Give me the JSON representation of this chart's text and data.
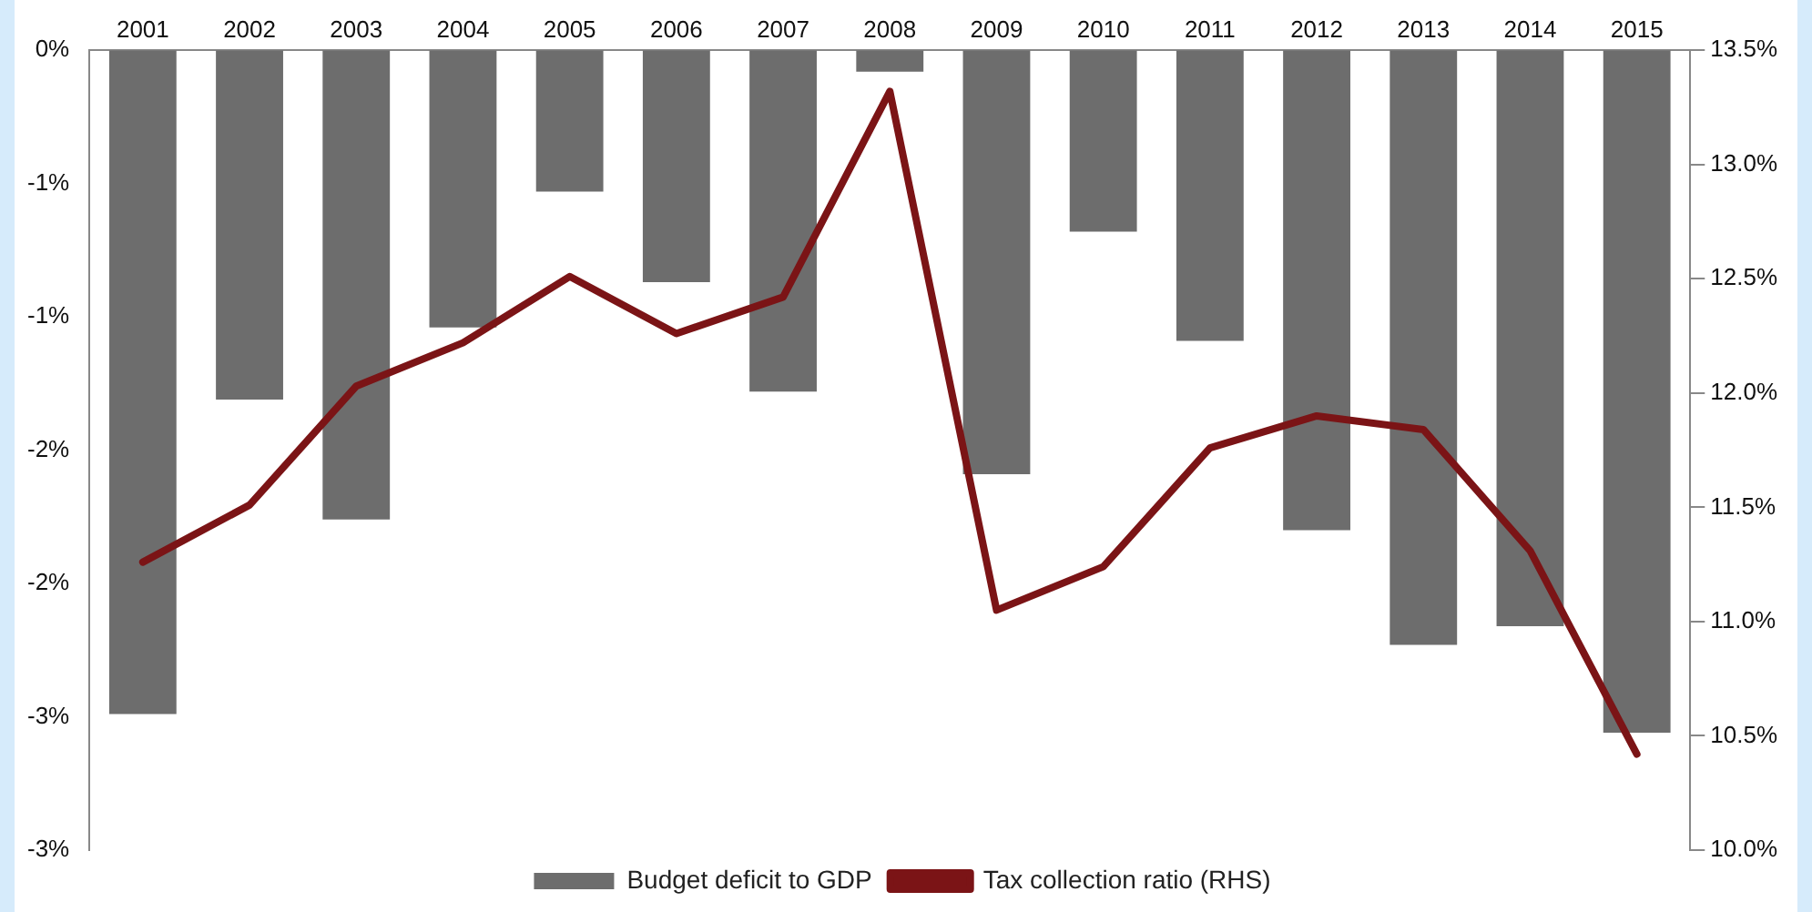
{
  "chart_data": {
    "type": "bar",
    "categories": [
      "2001",
      "2002",
      "2003",
      "2004",
      "2005",
      "2006",
      "2007",
      "2008",
      "2009",
      "2010",
      "2011",
      "2012",
      "2013",
      "2014",
      "2015"
    ],
    "series": [
      {
        "name": "Budget deficit to GDP",
        "color": "#6d6d6d",
        "values": [
          -2.49,
          -1.31,
          -1.76,
          -1.04,
          -0.53,
          -0.87,
          -1.28,
          -0.08,
          -1.59,
          -0.68,
          -1.09,
          -1.8,
          -2.23,
          -2.16,
          -2.56
        ]
      },
      {
        "name": "Tax collection ratio (RHS)",
        "type": "line",
        "axis": "y2",
        "color": "#7b1416",
        "values": [
          11.26,
          11.51,
          12.03,
          12.22,
          12.51,
          12.26,
          12.42,
          13.32,
          11.05,
          11.24,
          11.76,
          11.9,
          11.84,
          11.31,
          10.42
        ]
      }
    ],
    "ylim": [
      -3,
      0
    ],
    "yticks": [
      {
        "value": 0,
        "label": "0%"
      },
      {
        "value": -0.5,
        "label": "-1%"
      },
      {
        "value": -1,
        "label": "-1%"
      },
      {
        "value": -1.5,
        "label": "-2%"
      },
      {
        "value": -2,
        "label": "-2%"
      },
      {
        "value": -2.5,
        "label": "-3%"
      },
      {
        "value": -3,
        "label": "-3%"
      }
    ],
    "y2lim": [
      10,
      13.5
    ],
    "y2ticks": [
      {
        "value": 10,
        "label": "10.0%"
      },
      {
        "value": 10.5,
        "label": "10.5%"
      },
      {
        "value": 11,
        "label": "11.0%"
      },
      {
        "value": 11.5,
        "label": "11.5%"
      },
      {
        "value": 12,
        "label": "12.0%"
      },
      {
        "value": 12.5,
        "label": "12.5%"
      },
      {
        "value": 13,
        "label": "13.0%"
      },
      {
        "value": 13.5,
        "label": "13.5%"
      }
    ],
    "grid": false,
    "legend": "bottom",
    "marker": "none"
  }
}
